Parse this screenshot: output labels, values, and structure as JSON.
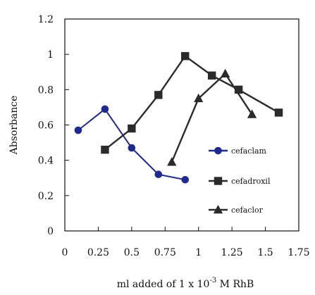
{
  "chart_data": {
    "type": "line",
    "xlabel": "ml added of 1 x 10",
    "xlabel_sup": "-3",
    "xlabel_suffix": " M RhB",
    "ylabel": "Absorbance",
    "xlim": [
      0,
      1.75
    ],
    "ylim": [
      0,
      1.2
    ],
    "x_ticks": [
      "0",
      "0.25",
      "0.5",
      "0.75",
      "1",
      "1.25",
      "1.5",
      "1.75"
    ],
    "y_ticks": [
      "0",
      "0.2",
      "0.4",
      "0.6",
      "0.8",
      "1",
      "1.2"
    ],
    "grid": false,
    "legend_position": "right",
    "series": [
      {
        "name": "cefaclam",
        "marker": "circle",
        "color": "#1f2a8a",
        "points": [
          {
            "x": 0.1,
            "y": 0.57
          },
          {
            "x": 0.3,
            "y": 0.69
          },
          {
            "x": 0.5,
            "y": 0.47
          },
          {
            "x": 0.7,
            "y": 0.32
          },
          {
            "x": 0.9,
            "y": 0.29
          }
        ]
      },
      {
        "name": "cefadroxil",
        "marker": "square",
        "color": "#2b2b2b",
        "points": [
          {
            "x": 0.3,
            "y": 0.46
          },
          {
            "x": 0.5,
            "y": 0.58
          },
          {
            "x": 0.7,
            "y": 0.77
          },
          {
            "x": 0.9,
            "y": 0.99
          },
          {
            "x": 1.1,
            "y": 0.88
          },
          {
            "x": 1.3,
            "y": 0.8
          },
          {
            "x": 1.6,
            "y": 0.67
          }
        ]
      },
      {
        "name": "cefaclor",
        "marker": "triangle",
        "color": "#2b2b2b",
        "points": [
          {
            "x": 0.8,
            "y": 0.39
          },
          {
            "x": 1.0,
            "y": 0.75
          },
          {
            "x": 1.2,
            "y": 0.89
          },
          {
            "x": 1.4,
            "y": 0.66
          }
        ]
      }
    ]
  }
}
